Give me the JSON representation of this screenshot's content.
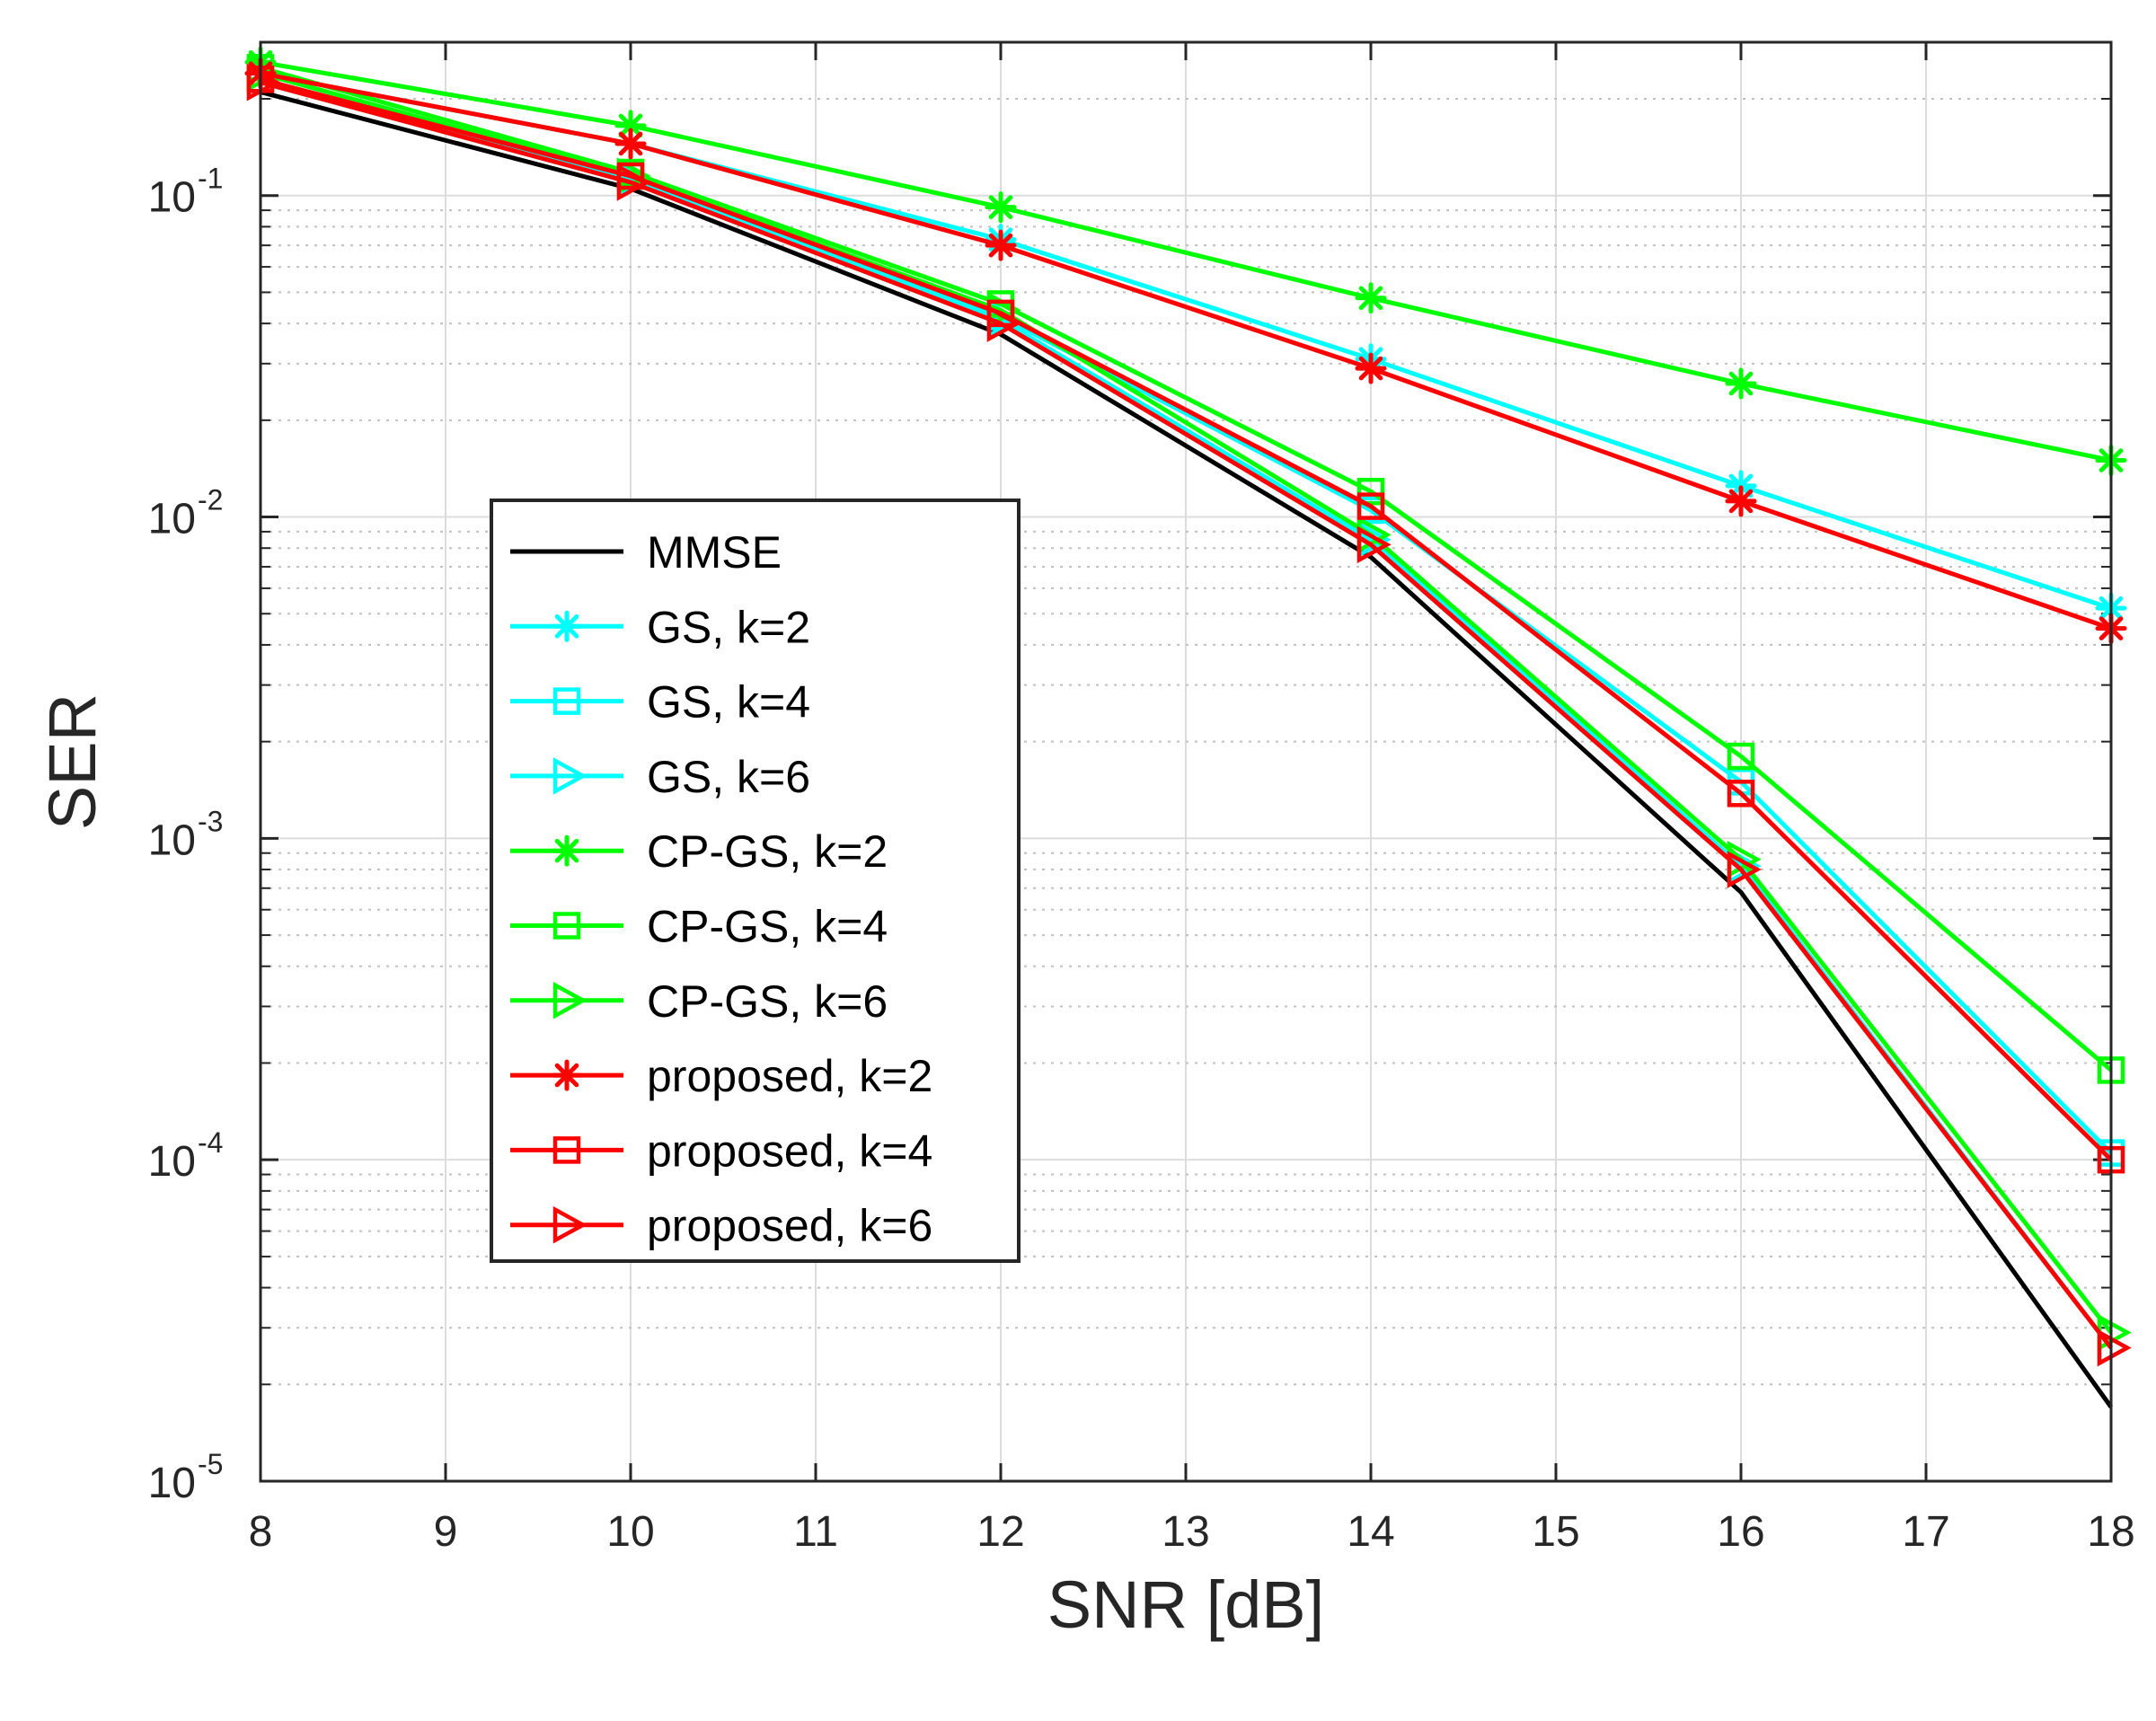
{
  "chart_data": {
    "type": "line",
    "title": "",
    "xlabel": "SNR [dB]",
    "ylabel": "SER",
    "y_scale": "log",
    "xlim": [
      8,
      18
    ],
    "ylim": [
      1e-05,
      0.3
    ],
    "x_ticks": [
      8,
      9,
      10,
      11,
      12,
      13,
      14,
      15,
      16,
      17,
      18
    ],
    "x_tick_labels": [
      "8",
      "9",
      "10",
      "11",
      "12",
      "13",
      "14",
      "15",
      "16",
      "17",
      "18"
    ],
    "y_ticks": [
      {
        "value": 0.1,
        "base": "10",
        "exp": "-1"
      },
      {
        "value": 0.01,
        "base": "10",
        "exp": "-2"
      },
      {
        "value": 0.001,
        "base": "10",
        "exp": "-3"
      },
      {
        "value": 0.0001,
        "base": "10",
        "exp": "-4"
      },
      {
        "value": 1e-05,
        "base": "10",
        "exp": "-5"
      }
    ],
    "grid": true,
    "legend_position": "center-left",
    "x": [
      8,
      10,
      12,
      14,
      16,
      18
    ],
    "series": [
      {
        "name": "MMSE",
        "color": "#000000",
        "marker": "none",
        "values": [
          0.21,
          0.105,
          0.037,
          0.0075,
          0.00068,
          1.7e-05
        ]
      },
      {
        "name": "GS, k=2",
        "color": "#00ffff",
        "marker": "star",
        "values": [
          0.24,
          0.145,
          0.073,
          0.031,
          0.0125,
          0.0052
        ]
      },
      {
        "name": "GS, k=4",
        "color": "#00ffff",
        "marker": "square",
        "values": [
          0.23,
          0.115,
          0.042,
          0.0105,
          0.0015,
          0.000105
        ]
      },
      {
        "name": "GS, k=6",
        "color": "#00ffff",
        "marker": "triangle-right",
        "values": [
          0.225,
          0.112,
          0.041,
          0.0085,
          0.00082,
          2.6e-05
        ]
      },
      {
        "name": "CP-GS, k=2",
        "color": "#00ff00",
        "marker": "star",
        "values": [
          0.26,
          0.165,
          0.092,
          0.048,
          0.026,
          0.015
        ]
      },
      {
        "name": "CP-GS, k=4",
        "color": "#00ff00",
        "marker": "square",
        "values": [
          0.25,
          0.118,
          0.046,
          0.012,
          0.0018,
          0.00019
        ]
      },
      {
        "name": "CP-GS, k=6",
        "color": "#00ff00",
        "marker": "triangle-right",
        "values": [
          0.24,
          0.115,
          0.044,
          0.0088,
          0.00086,
          2.9e-05
        ]
      },
      {
        "name": "proposed, k=2",
        "color": "#ff0000",
        "marker": "star",
        "values": [
          0.24,
          0.145,
          0.07,
          0.029,
          0.0112,
          0.0045
        ]
      },
      {
        "name": "proposed, k=4",
        "color": "#ff0000",
        "marker": "square",
        "values": [
          0.23,
          0.115,
          0.043,
          0.0108,
          0.00138,
          0.0001
        ]
      },
      {
        "name": "proposed, k=6",
        "color": "#ff0000",
        "marker": "triangle-right",
        "values": [
          0.225,
          0.11,
          0.04,
          0.0082,
          0.0008,
          2.6e-05
        ]
      }
    ]
  }
}
